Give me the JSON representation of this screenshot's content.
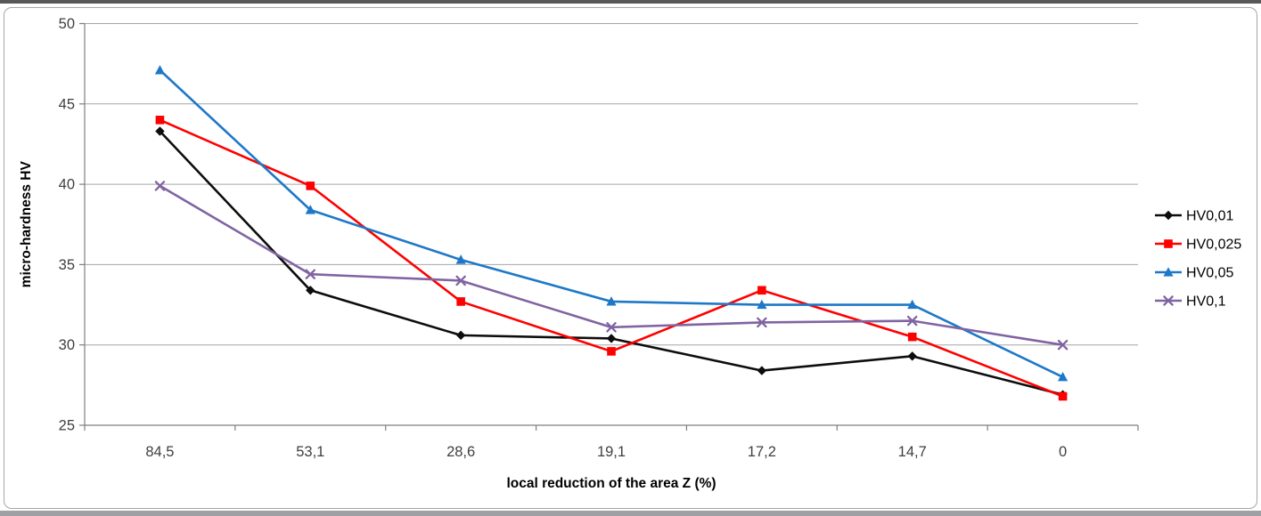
{
  "chart_data": {
    "type": "line",
    "categories": [
      "84,5",
      "53,1",
      "28,6",
      "19,1",
      "17,2",
      "14,7",
      "0"
    ],
    "series": [
      {
        "name": "HV0,01",
        "marker": "diamond",
        "color": "#0d0d0d",
        "values": [
          43.3,
          33.4,
          30.6,
          30.4,
          28.4,
          29.3,
          26.9
        ]
      },
      {
        "name": "HV0,025",
        "marker": "square",
        "color": "#fe0000",
        "values": [
          44.0,
          39.9,
          32.7,
          29.6,
          33.4,
          30.5,
          26.8
        ]
      },
      {
        "name": "HV0,05",
        "marker": "triangle",
        "color": "#1e78c8",
        "values": [
          47.1,
          38.4,
          35.3,
          32.7,
          32.5,
          32.5,
          28.0
        ]
      },
      {
        "name": "HV0,1",
        "marker": "x",
        "color": "#8064a2",
        "values": [
          39.9,
          34.4,
          34.0,
          31.1,
          31.4,
          31.5,
          30.0
        ]
      }
    ],
    "xlabel": "local reduction of the area Z  (%)",
    "ylabel": "micro-hardness HV",
    "ylim": [
      25,
      50
    ],
    "ytick_step": 5,
    "yticks": [
      "25",
      "30",
      "35",
      "40",
      "45",
      "50"
    ],
    "grid": "horizontal",
    "legend_position": "right"
  },
  "styles": {
    "grid_color": "#a6a6a6",
    "axis_color": "#7f7f7f",
    "tick_label_color": "#3f3f3f",
    "axis_title_color": "#000000",
    "legend_text_color": "#000000",
    "chart_border_color": "#a6a6a6",
    "top_bar_color": "#58585a",
    "bottom_bar_color": "#9ea0a3",
    "background_color": "#ffffff"
  }
}
